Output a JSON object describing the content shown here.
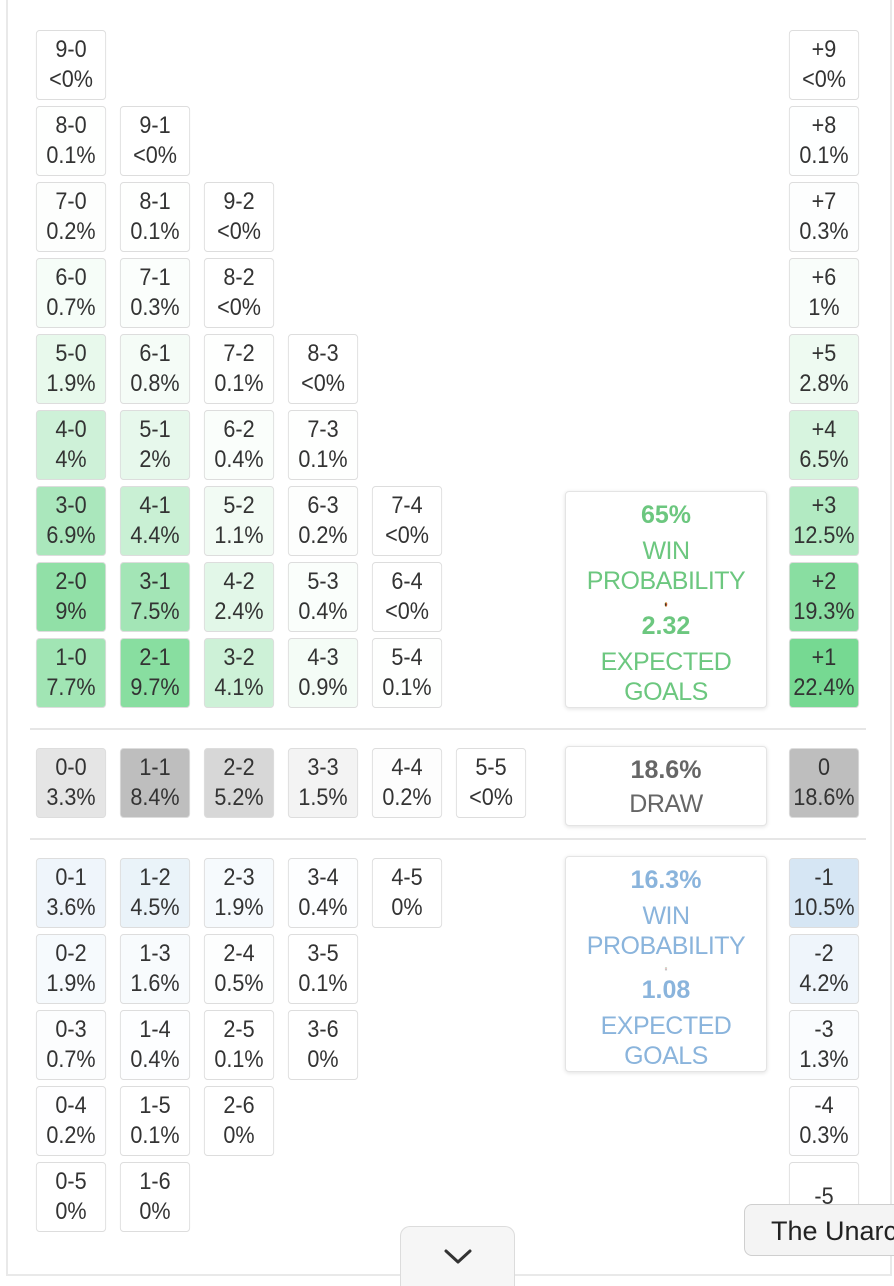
{
  "colors": {
    "home_win": "#6cc77f",
    "away_win": "#8ab4dc",
    "draw": "#666666"
  },
  "home_scores": [
    [
      "9-0",
      "<0%"
    ],
    [
      "8-0",
      "0.1%"
    ],
    [
      "9-1",
      "<0%"
    ],
    [
      "7-0",
      "0.2%"
    ],
    [
      "8-1",
      "0.1%"
    ],
    [
      "9-2",
      "<0%"
    ],
    [
      "6-0",
      "0.7%"
    ],
    [
      "7-1",
      "0.3%"
    ],
    [
      "8-2",
      "<0%"
    ],
    [
      "5-0",
      "1.9%"
    ],
    [
      "6-1",
      "0.8%"
    ],
    [
      "7-2",
      "0.1%"
    ],
    [
      "8-3",
      "<0%"
    ],
    [
      "4-0",
      "4%"
    ],
    [
      "5-1",
      "2%"
    ],
    [
      "6-2",
      "0.4%"
    ],
    [
      "7-3",
      "0.1%"
    ],
    [
      "3-0",
      "6.9%"
    ],
    [
      "4-1",
      "4.4%"
    ],
    [
      "5-2",
      "1.1%"
    ],
    [
      "6-3",
      "0.2%"
    ],
    [
      "7-4",
      "<0%"
    ],
    [
      "2-0",
      "9%"
    ],
    [
      "3-1",
      "7.5%"
    ],
    [
      "4-2",
      "2.4%"
    ],
    [
      "5-3",
      "0.4%"
    ],
    [
      "6-4",
      "<0%"
    ],
    [
      "1-0",
      "7.7%"
    ],
    [
      "2-1",
      "9.7%"
    ],
    [
      "3-2",
      "4.1%"
    ],
    [
      "4-3",
      "0.9%"
    ],
    [
      "5-4",
      "0.1%"
    ]
  ],
  "draw_scores": [
    [
      "0-0",
      "3.3%"
    ],
    [
      "1-1",
      "8.4%"
    ],
    [
      "2-2",
      "5.2%"
    ],
    [
      "3-3",
      "1.5%"
    ],
    [
      "4-4",
      "0.2%"
    ],
    [
      "5-5",
      "<0%"
    ]
  ],
  "away_scores": [
    [
      "0-1",
      "3.6%"
    ],
    [
      "1-2",
      "4.5%"
    ],
    [
      "2-3",
      "1.9%"
    ],
    [
      "3-4",
      "0.4%"
    ],
    [
      "4-5",
      "0%"
    ],
    [
      "0-2",
      "1.9%"
    ],
    [
      "1-3",
      "1.6%"
    ],
    [
      "2-4",
      "0.5%"
    ],
    [
      "3-5",
      "0.1%"
    ],
    [
      "0-3",
      "0.7%"
    ],
    [
      "1-4",
      "0.4%"
    ],
    [
      "2-5",
      "0.1%"
    ],
    [
      "3-6",
      "0%"
    ],
    [
      "0-4",
      "0.2%"
    ],
    [
      "1-5",
      "0.1%"
    ],
    [
      "2-6",
      "0%"
    ],
    [
      "0-5",
      "0%"
    ],
    [
      "1-6",
      "0%"
    ]
  ],
  "margins": [
    [
      "+9",
      "<0%"
    ],
    [
      "+8",
      "0.1%"
    ],
    [
      "+7",
      "0.3%"
    ],
    [
      "+6",
      "1%"
    ],
    [
      "+5",
      "2.8%"
    ],
    [
      "+4",
      "6.5%"
    ],
    [
      "+3",
      "12.5%"
    ],
    [
      "+2",
      "19.3%"
    ],
    [
      "+1",
      "22.4%"
    ],
    [
      "0",
      "18.6%"
    ],
    [
      "-1",
      "10.5%"
    ],
    [
      "-2",
      "4.2%"
    ],
    [
      "-3",
      "1.3%"
    ],
    [
      "-4",
      "0.3%"
    ],
    [
      "-5",
      ""
    ]
  ],
  "home_summary": {
    "win_pct": "65%",
    "win_label": "WIN PROBABILITY",
    "xg": "2.32",
    "xg_label": "EXPECTED GOALS",
    "crest_icon": "belgium-crest-icon"
  },
  "draw_summary": {
    "pct": "18.6%",
    "label": "DRAW"
  },
  "away_summary": {
    "win_pct": "16.3%",
    "win_label": "WIN PROBABILITY",
    "xg": "1.08",
    "xg_label": "EXPECTED GOALS",
    "crest_icon": "iran-crest-icon"
  },
  "scroll_button": {
    "icon": "chevron-down-icon"
  },
  "tooltip": {
    "text": "The Unarc"
  }
}
